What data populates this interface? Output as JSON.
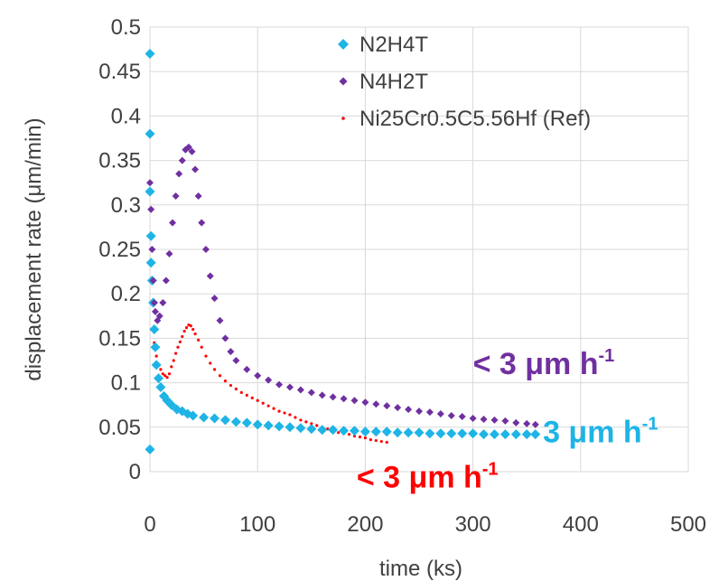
{
  "chart_data": {
    "type": "scatter",
    "xlabel": "time (ks)",
    "ylabel": "displacement rate (μm/min)",
    "xlim": [
      0,
      500
    ],
    "ylim": [
      0,
      0.5
    ],
    "xticks": [
      "0",
      "100",
      "200",
      "300",
      "400",
      "500"
    ],
    "yticks": [
      "0",
      "0.05",
      "0.1",
      "0.15",
      "0.2",
      "0.25",
      "0.3",
      "0.35",
      "0.4",
      "0.45",
      "0.5"
    ],
    "grid": true,
    "legend_position": "top-right",
    "series": [
      {
        "name": "N2H4T",
        "color": "#1eb4e6",
        "marker": "diamond",
        "points": [
          [
            0,
            0.025
          ],
          [
            0,
            0.47
          ],
          [
            0,
            0.38
          ],
          [
            0,
            0.315
          ],
          [
            1,
            0.265
          ],
          [
            1,
            0.235
          ],
          [
            2,
            0.215
          ],
          [
            3,
            0.19
          ],
          [
            4,
            0.16
          ],
          [
            5,
            0.14
          ],
          [
            6,
            0.12
          ],
          [
            8,
            0.105
          ],
          [
            10,
            0.095
          ],
          [
            13,
            0.085
          ],
          [
            16,
            0.08
          ],
          [
            20,
            0.075
          ],
          [
            25,
            0.07
          ],
          [
            30,
            0.068
          ],
          [
            35,
            0.065
          ],
          [
            40,
            0.063
          ],
          [
            50,
            0.061
          ],
          [
            60,
            0.06
          ],
          [
            70,
            0.058
          ],
          [
            80,
            0.056
          ],
          [
            90,
            0.055
          ],
          [
            100,
            0.053
          ],
          [
            110,
            0.052
          ],
          [
            120,
            0.051
          ],
          [
            130,
            0.05
          ],
          [
            140,
            0.049
          ],
          [
            150,
            0.048
          ],
          [
            160,
            0.047
          ],
          [
            170,
            0.047
          ],
          [
            180,
            0.046
          ],
          [
            190,
            0.046
          ],
          [
            200,
            0.045
          ],
          [
            210,
            0.045
          ],
          [
            220,
            0.045
          ],
          [
            230,
            0.044
          ],
          [
            240,
            0.044
          ],
          [
            250,
            0.044
          ],
          [
            260,
            0.043
          ],
          [
            270,
            0.043
          ],
          [
            280,
            0.043
          ],
          [
            290,
            0.043
          ],
          [
            300,
            0.043
          ],
          [
            310,
            0.042
          ],
          [
            320,
            0.042
          ],
          [
            330,
            0.042
          ],
          [
            340,
            0.042
          ],
          [
            350,
            0.042
          ],
          [
            358,
            0.042
          ]
        ]
      },
      {
        "name": "N4H2T",
        "color": "#7030a0",
        "marker": "diamond",
        "points": [
          [
            0,
            0.325
          ],
          [
            1,
            0.295
          ],
          [
            2,
            0.25
          ],
          [
            3,
            0.215
          ],
          [
            4,
            0.19
          ],
          [
            5,
            0.18
          ],
          [
            7,
            0.17
          ],
          [
            9,
            0.175
          ],
          [
            12,
            0.19
          ],
          [
            15,
            0.215
          ],
          [
            18,
            0.245
          ],
          [
            21,
            0.28
          ],
          [
            24,
            0.31
          ],
          [
            27,
            0.335
          ],
          [
            30,
            0.35
          ],
          [
            33,
            0.362
          ],
          [
            36,
            0.365
          ],
          [
            39,
            0.36
          ],
          [
            42,
            0.34
          ],
          [
            45,
            0.31
          ],
          [
            48,
            0.28
          ],
          [
            52,
            0.25
          ],
          [
            56,
            0.22
          ],
          [
            60,
            0.195
          ],
          [
            65,
            0.17
          ],
          [
            70,
            0.15
          ],
          [
            75,
            0.135
          ],
          [
            80,
            0.125
          ],
          [
            90,
            0.115
          ],
          [
            100,
            0.108
          ],
          [
            110,
            0.103
          ],
          [
            120,
            0.098
          ],
          [
            130,
            0.095
          ],
          [
            140,
            0.092
          ],
          [
            150,
            0.089
          ],
          [
            160,
            0.086
          ],
          [
            170,
            0.084
          ],
          [
            180,
            0.082
          ],
          [
            190,
            0.08
          ],
          [
            200,
            0.078
          ],
          [
            210,
            0.076
          ],
          [
            220,
            0.074
          ],
          [
            230,
            0.072
          ],
          [
            240,
            0.07
          ],
          [
            250,
            0.068
          ],
          [
            260,
            0.067
          ],
          [
            270,
            0.065
          ],
          [
            280,
            0.063
          ],
          [
            290,
            0.062
          ],
          [
            300,
            0.06
          ],
          [
            310,
            0.059
          ],
          [
            320,
            0.058
          ],
          [
            330,
            0.057
          ],
          [
            340,
            0.055
          ],
          [
            350,
            0.054
          ],
          [
            358,
            0.053
          ]
        ]
      },
      {
        "name": "Ni25Cr0.5C5.56Hf (Ref)",
        "color": "#ff0000",
        "marker": "dot",
        "points": [
          [
            2,
            0.16
          ],
          [
            4,
            0.145
          ],
          [
            6,
            0.13
          ],
          [
            8,
            0.12
          ],
          [
            10,
            0.115
          ],
          [
            12,
            0.11
          ],
          [
            14,
            0.108
          ],
          [
            16,
            0.106
          ],
          [
            18,
            0.11
          ],
          [
            20,
            0.118
          ],
          [
            22,
            0.125
          ],
          [
            24,
            0.133
          ],
          [
            26,
            0.14
          ],
          [
            28,
            0.146
          ],
          [
            30,
            0.152
          ],
          [
            32,
            0.158
          ],
          [
            34,
            0.162
          ],
          [
            36,
            0.165
          ],
          [
            38,
            0.164
          ],
          [
            40,
            0.16
          ],
          [
            42,
            0.155
          ],
          [
            45,
            0.148
          ],
          [
            48,
            0.14
          ],
          [
            52,
            0.13
          ],
          [
            56,
            0.122
          ],
          [
            60,
            0.115
          ],
          [
            65,
            0.108
          ],
          [
            70,
            0.102
          ],
          [
            75,
            0.097
          ],
          [
            80,
            0.093
          ],
          [
            85,
            0.089
          ],
          [
            90,
            0.086
          ],
          [
            95,
            0.083
          ],
          [
            100,
            0.08
          ],
          [
            105,
            0.077
          ],
          [
            110,
            0.074
          ],
          [
            115,
            0.071
          ],
          [
            120,
            0.068
          ],
          [
            125,
            0.066
          ],
          [
            130,
            0.064
          ],
          [
            135,
            0.061
          ],
          [
            140,
            0.058
          ],
          [
            145,
            0.056
          ],
          [
            150,
            0.054
          ],
          [
            155,
            0.052
          ],
          [
            160,
            0.05
          ],
          [
            165,
            0.048
          ],
          [
            170,
            0.046
          ],
          [
            175,
            0.044
          ],
          [
            180,
            0.043
          ],
          [
            185,
            0.042
          ],
          [
            190,
            0.04
          ],
          [
            195,
            0.039
          ],
          [
            200,
            0.038
          ],
          [
            205,
            0.036
          ],
          [
            210,
            0.035
          ],
          [
            215,
            0.034
          ],
          [
            220,
            0.033
          ]
        ]
      }
    ],
    "annotations": [
      {
        "text": "< 3 μm h",
        "sup": "-1",
        "color": "#7030a0",
        "x": 300,
        "y": 0.11
      },
      {
        "text": "3 μm h",
        "sup": "-1",
        "color": "#1eb4e6",
        "x": 365,
        "y": 0.033
      },
      {
        "text": "< 3 μm h",
        "sup": "-1",
        "color": "#ff0000",
        "x": 192,
        "y": -0.018
      }
    ]
  }
}
